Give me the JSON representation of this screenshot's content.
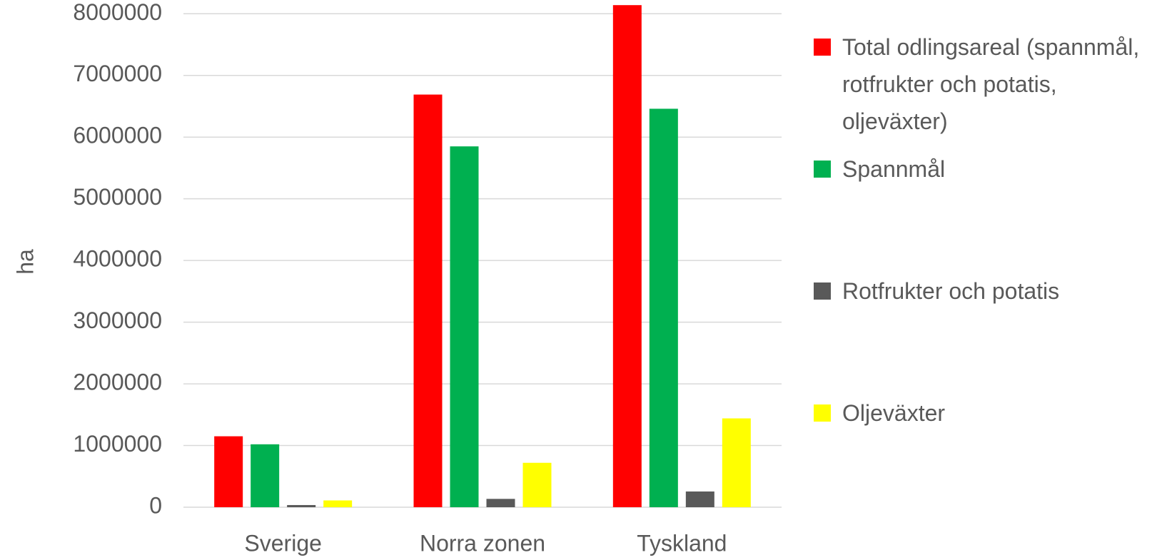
{
  "chart_data": {
    "type": "bar",
    "y_label": "ha",
    "categories": [
      "Sverige",
      "Norra zonen",
      "Tyskland"
    ],
    "series": [
      {
        "name": "Total odlingsareal (spannmål, rotfrukter och potatis, oljeväxter)",
        "color": "#ff0000",
        "values": [
          1150000,
          6690000,
          8140000
        ]
      },
      {
        "name": "Spannmål",
        "color": "#00b050",
        "values": [
          1020000,
          5850000,
          6460000
        ]
      },
      {
        "name": "Rotfrukter och potatis",
        "color": "#595959",
        "values": [
          35000,
          135000,
          255000
        ]
      },
      {
        "name": "Oljeväxter",
        "color": "#ffff00",
        "values": [
          110000,
          720000,
          1440000
        ]
      }
    ],
    "ylim": [
      0,
      8200000
    ],
    "yticks": [
      0,
      1000000,
      2000000,
      3000000,
      4000000,
      5000000,
      6000000,
      7000000,
      8000000
    ],
    "grid": true,
    "legend": "right"
  }
}
